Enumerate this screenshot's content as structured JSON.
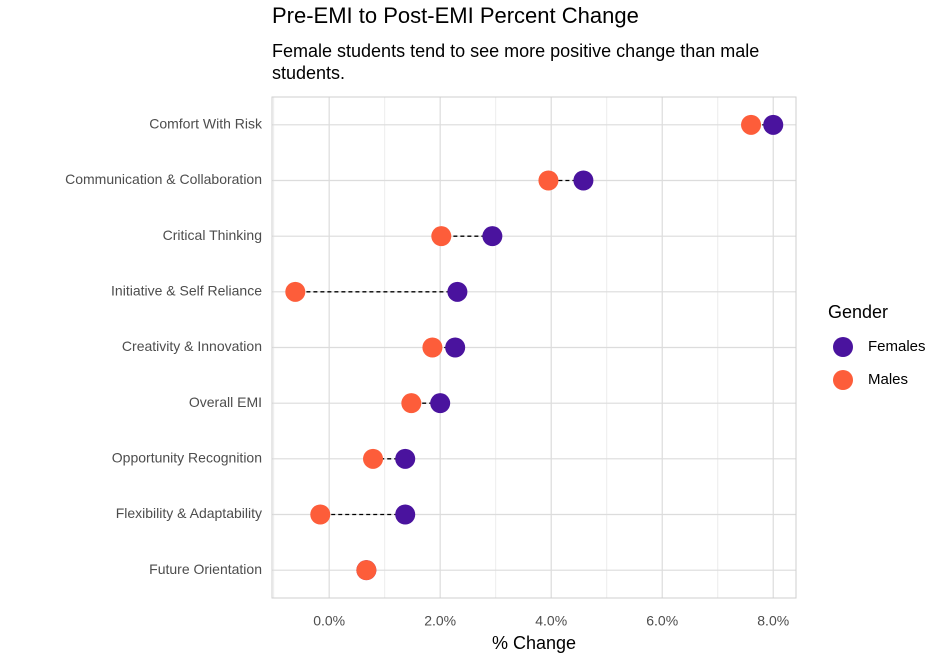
{
  "chart_data": {
    "type": "dumbbell",
    "title": "Pre-EMI to Post-EMI Percent Change",
    "subtitle": "Female students tend to see more positive change than male students.",
    "x_label": "% Change",
    "legend_title": "Gender",
    "categories": [
      "Comfort With Risk",
      "Communication & Collaboration",
      "Critical Thinking",
      "Initiative & Self Reliance",
      "Creativity & Innovation",
      "Overall EMI",
      "Opportunity Recognition",
      "Flexibility & Adaptability",
      "Future Orientation"
    ],
    "series": [
      {
        "name": "Females",
        "color": "#4a139e",
        "values": [
          8.0,
          4.58,
          2.94,
          2.31,
          2.27,
          2.0,
          1.37,
          1.37,
          0.67
        ]
      },
      {
        "name": "Males",
        "color": "#fd5d3a",
        "values": [
          7.6,
          3.95,
          2.02,
          -0.61,
          1.86,
          1.48,
          0.79,
          -0.16,
          0.67
        ]
      }
    ],
    "xlim": [
      -1.03,
      8.41
    ],
    "xticks": [
      {
        "value": 0,
        "label": "0.0%"
      },
      {
        "value": 2,
        "label": "2.0%"
      },
      {
        "value": 4,
        "label": "4.0%"
      },
      {
        "value": 6,
        "label": "6.0%"
      },
      {
        "value": 8,
        "label": "8.0%"
      }
    ],
    "xminorticks": [
      -1,
      1,
      3,
      5,
      7
    ],
    "grid": true
  }
}
